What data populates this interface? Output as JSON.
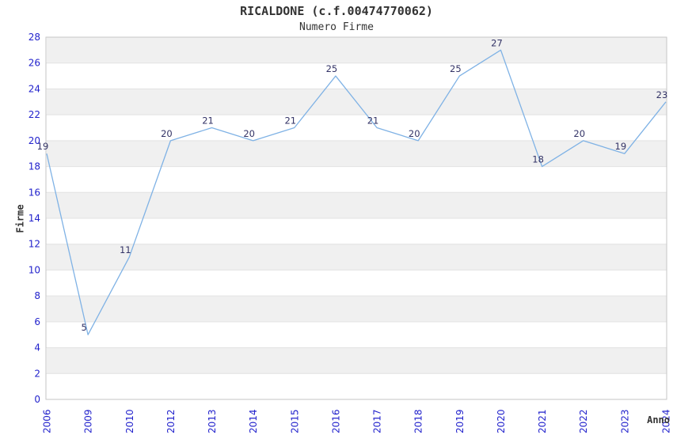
{
  "page": {
    "title": "RICALDONE (c.f.00474770062)",
    "subtitle": "Numero Firme"
  },
  "chart_data": {
    "type": "line",
    "title": "RICALDONE (c.f.00474770062)",
    "subtitle": "Numero Firme",
    "xlabel": "Anno",
    "ylabel": "Firme",
    "categories": [
      "2006",
      "2009",
      "2010",
      "2012",
      "2013",
      "2014",
      "2015",
      "2016",
      "2017",
      "2018",
      "2019",
      "2020",
      "2021",
      "2022",
      "2023",
      "2024"
    ],
    "values": [
      19,
      5,
      11,
      20,
      21,
      20,
      21,
      25,
      21,
      20,
      25,
      27,
      18,
      20,
      19,
      23
    ],
    "ylim": [
      0,
      28
    ],
    "ytick_step": 2,
    "yticks": [
      0,
      2,
      4,
      6,
      8,
      10,
      12,
      14,
      16,
      18,
      20,
      22,
      24,
      26,
      28
    ],
    "grid": "horizontal-bands",
    "legend_position": "none",
    "point_labels_visible": true,
    "x_tick_rotation_deg": -90,
    "colors": {
      "line": "#7fb2e5",
      "tick_label": "#2222cc",
      "point_label": "#333366",
      "title": "#333333",
      "band": "#f0f0f0",
      "gridline": "#e2e2e2",
      "plot_border": "#c6c6c6",
      "background": "#ffffff"
    }
  }
}
